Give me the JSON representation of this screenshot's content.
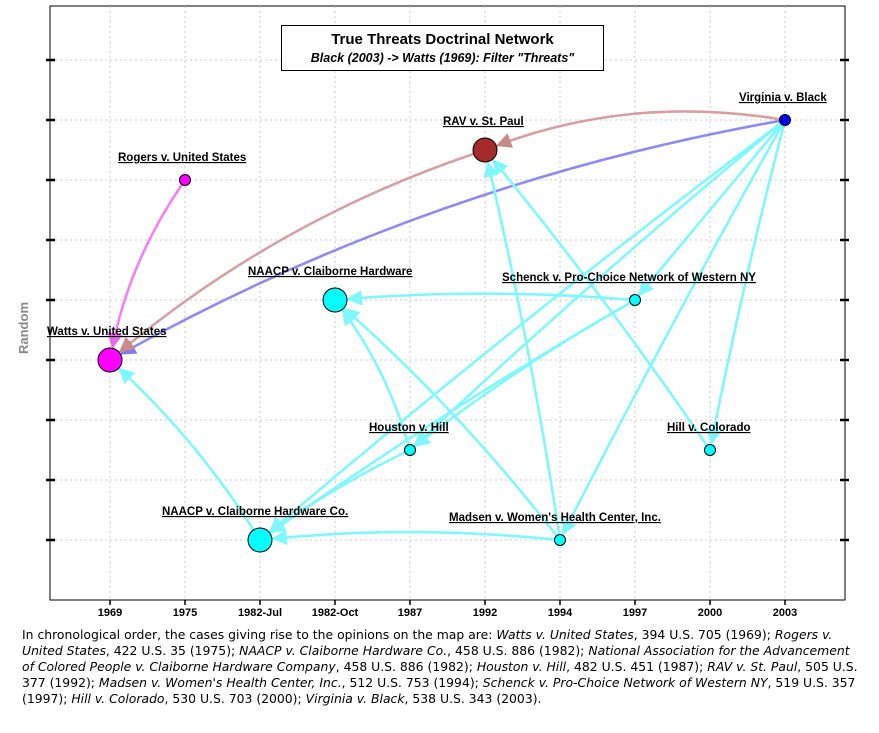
{
  "title": "True Threats Doctrinal Network",
  "subtitle": "Black (2003) -> Watts (1969): Filter \"Threats\"",
  "ylabel": "Random",
  "x_ticks": [
    "1969",
    "1975",
    "1982-Jul",
    "1982-Oct",
    "1987",
    "1992",
    "1994",
    "1997",
    "2000",
    "2003"
  ],
  "colors": {
    "magenta": "#ff00ff",
    "cyan": "#00ffff",
    "dark_red": "#a52a2a",
    "blue": "#0000ee",
    "edge_cyan": "#7ff7ff",
    "edge_rose": "#d6a0a0",
    "edge_blue": "#8c8cee",
    "edge_pink": "#f37ff3"
  },
  "nodes": [
    {
      "id": "watts",
      "label": "Watts v. United States",
      "year": "1969",
      "color": "magenta",
      "size": "large"
    },
    {
      "id": "rogers",
      "label": "Rogers v. United States",
      "year": "1975",
      "color": "magenta",
      "size": "small"
    },
    {
      "id": "naacp_co",
      "label": "NAACP v. Claiborne Hardware Co.",
      "year": "1982-Jul",
      "color": "cyan",
      "size": "large"
    },
    {
      "id": "naacp_hw",
      "label": "NAACP v. Claiborne Hardware",
      "year": "1982-Oct",
      "color": "cyan",
      "size": "large"
    },
    {
      "id": "houston",
      "label": "Houston v. Hill",
      "year": "1987",
      "color": "cyan",
      "size": "small"
    },
    {
      "id": "rav",
      "label": "RAV v. St. Paul",
      "year": "1992",
      "color": "dark_red",
      "size": "large"
    },
    {
      "id": "madsen",
      "label": "Madsen v. Women's Health Center, Inc.",
      "year": "1994",
      "color": "cyan",
      "size": "small"
    },
    {
      "id": "schenck",
      "label": "Schenck v. Pro-Choice Network of Western NY",
      "year": "1997",
      "color": "cyan",
      "size": "small"
    },
    {
      "id": "hill",
      "label": "Hill v. Colorado",
      "year": "2000",
      "color": "cyan",
      "size": "small"
    },
    {
      "id": "black",
      "label": "Virginia v. Black",
      "year": "2003",
      "color": "blue",
      "size": "small"
    }
  ],
  "edges": [
    {
      "from": "black",
      "to": "watts",
      "color": "edge_blue"
    },
    {
      "from": "black",
      "to": "rav",
      "color": "edge_rose"
    },
    {
      "from": "rav",
      "to": "watts",
      "color": "edge_rose"
    },
    {
      "from": "rogers",
      "to": "watts",
      "color": "edge_pink"
    },
    {
      "from": "naacp_co",
      "to": "watts",
      "color": "edge_cyan"
    },
    {
      "from": "black",
      "to": "schenck",
      "color": "edge_cyan"
    },
    {
      "from": "black",
      "to": "houston",
      "color": "edge_cyan"
    },
    {
      "from": "black",
      "to": "naacp_co",
      "color": "edge_cyan"
    },
    {
      "from": "black",
      "to": "madsen",
      "color": "edge_cyan"
    },
    {
      "from": "black",
      "to": "hill",
      "color": "edge_cyan"
    },
    {
      "from": "schenck",
      "to": "naacp_hw",
      "color": "edge_cyan"
    },
    {
      "from": "schenck",
      "to": "houston",
      "color": "edge_cyan"
    },
    {
      "from": "schenck",
      "to": "naacp_co",
      "color": "edge_cyan"
    },
    {
      "from": "hill",
      "to": "rav",
      "color": "edge_cyan"
    },
    {
      "from": "madsen",
      "to": "rav",
      "color": "edge_cyan"
    },
    {
      "from": "madsen",
      "to": "naacp_hw",
      "color": "edge_cyan"
    },
    {
      "from": "madsen",
      "to": "naacp_co",
      "color": "edge_cyan"
    },
    {
      "from": "houston",
      "to": "naacp_hw",
      "color": "edge_cyan"
    },
    {
      "from": "houston",
      "to": "naacp_co",
      "color": "edge_cyan"
    }
  ],
  "caption": {
    "intro": "In chronological order, the cases giving rise to the opinions on the map are:",
    "cases": [
      {
        "name": "Watts v. United States",
        "cite": ", 394 U.S. 705 (1969);"
      },
      {
        "name": "Rogers v. United States",
        "cite": ", 422 U.S. 35 (1975);"
      },
      {
        "name": "NAACP v. Claiborne Hardware Co.",
        "cite": ", 458 U.S. 886 (1982);"
      },
      {
        "name": "National Association for the Advancement of Colored People v. Claiborne Hardware Company",
        "cite": ", 458 U.S. 886 (1982);"
      },
      {
        "name": "Houston v. Hill",
        "cite": ", 482 U.S. 451 (1987);"
      },
      {
        "name": "RAV v. St. Paul",
        "cite": ", 505 U.S. 377 (1992);"
      },
      {
        "name": "Madsen v. Women's Health Center, Inc.",
        "cite": ", 512 U.S. 753 (1994);"
      },
      {
        "name": "Schenck v. Pro-Choice Network of Western NY",
        "cite": ", 519 U.S. 357 (1997);"
      },
      {
        "name": "Hill v. Colorado",
        "cite": ", 530 U.S. 703 (2000);"
      },
      {
        "name": "Virginia v. Black",
        "cite": ", 538 U.S. 343 (2003)."
      }
    ]
  }
}
